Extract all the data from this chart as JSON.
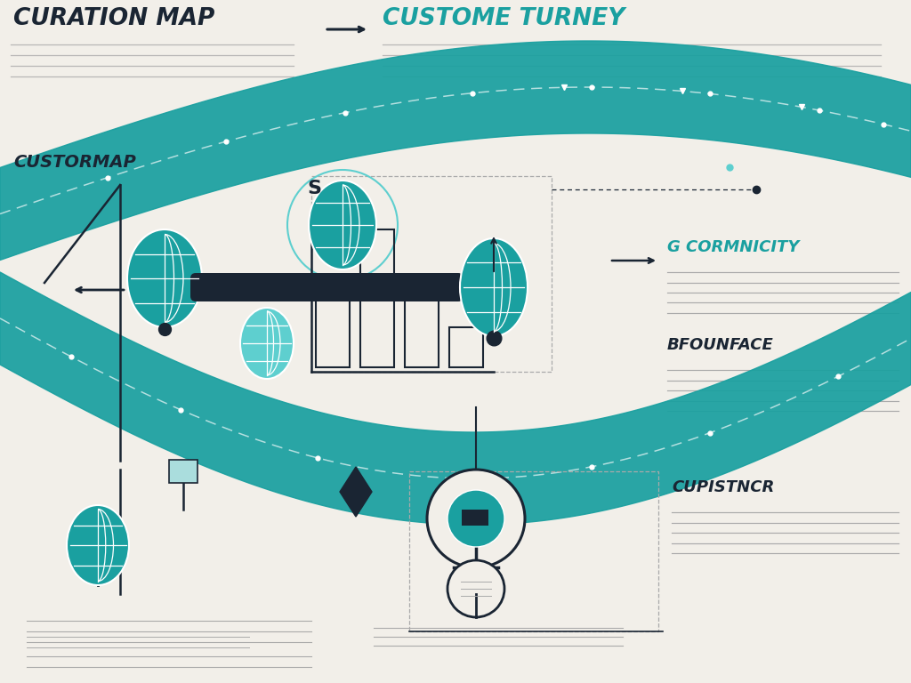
{
  "bg_color": "#f2efe9",
  "teal": "#1aa0a0",
  "teal_mid": "#18929a",
  "teal_light": "#5ecfcf",
  "dark": "#1a2533",
  "gray": "#aaaaaa",
  "title1": "CURATION MAP",
  "title2": "CUSTOME TURNEY",
  "label_custormap": "CUSTORMAP",
  "label_gcormnicity": "G CORMNICITY",
  "label_bfounface": "BFOUNFACE",
  "label_cupistncr": "CUPISTNCR",
  "label_s": "S"
}
